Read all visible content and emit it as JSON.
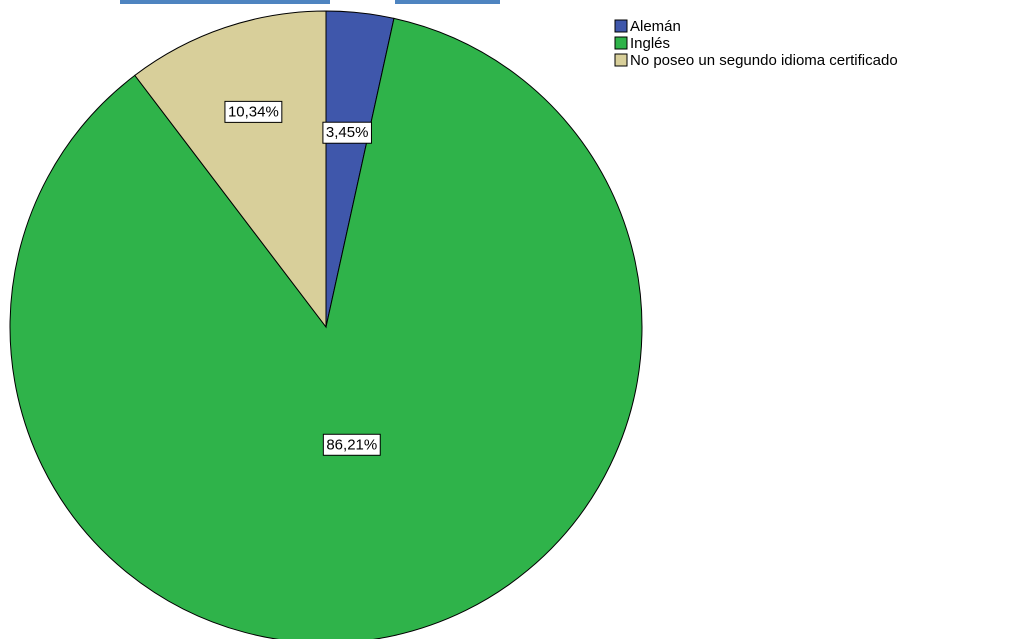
{
  "chart_data": {
    "type": "pie",
    "title": "",
    "categories": [
      "Alemán",
      "Inglés",
      "No poseo un segundo idioma certificado"
    ],
    "values": [
      3.45,
      86.21,
      10.34
    ],
    "labels": [
      "3,45%",
      "86,21%",
      "10,34%"
    ],
    "colors": [
      "#3f57ab",
      "#2fb34a",
      "#d8cf9a"
    ],
    "legend": {
      "placement": "top-right",
      "entries": [
        "Alemán",
        "Inglés",
        "No poseo un segundo idioma certificado"
      ]
    },
    "start_angle_deg": 0,
    "direction": "clockwise"
  }
}
